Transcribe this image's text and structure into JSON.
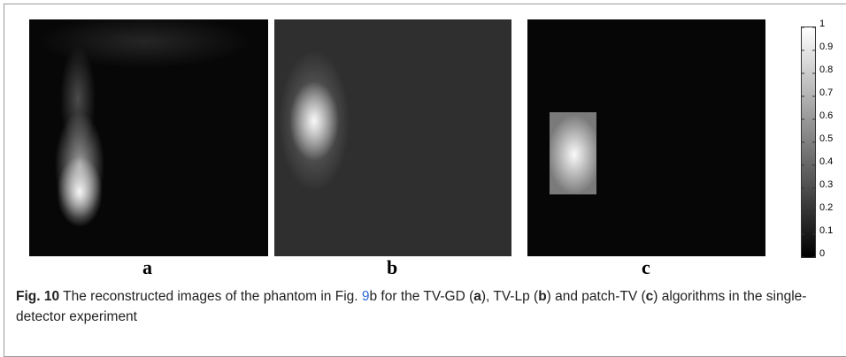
{
  "figure": {
    "panels": [
      {
        "label": "a"
      },
      {
        "label": "b"
      },
      {
        "label": "c"
      }
    ],
    "colorbar": {
      "ticks": [
        0,
        0.1,
        0.2,
        0.3,
        0.4,
        0.5,
        0.6,
        0.7,
        0.8,
        0.9,
        1
      ],
      "range": [
        0,
        1
      ]
    }
  },
  "caption": {
    "label": "Fig. 10",
    "parts": [
      " The reconstructed images of the phantom in Fig. ",
      "9",
      "b for the TV-GD (",
      "a",
      "), TV-Lp (",
      "b",
      ") and patch-TV (",
      "c",
      ") algorithms in the single-detector experiment"
    ]
  }
}
